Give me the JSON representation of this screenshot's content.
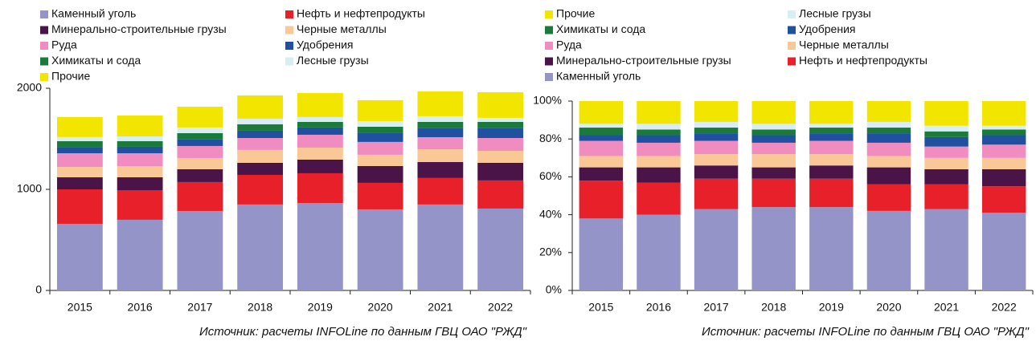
{
  "chart_data": [
    {
      "type": "stacked_bar",
      "categories": [
        "2015",
        "2016",
        "2017",
        "2018",
        "2019",
        "2020",
        "2021",
        "2022"
      ],
      "series": [
        {
          "name": "Каменный уголь",
          "color": "#9494c8",
          "values": [
            659,
            699,
            786,
            850,
            865,
            802,
            850,
            810
          ]
        },
        {
          "name": "Нефть и нефтепродукты",
          "color": "#e8202a",
          "values": [
            341,
            293,
            286,
            293,
            294,
            262,
            262,
            278
          ]
        },
        {
          "name": "Минерально-строительные грузы",
          "color": "#4a1448",
          "values": [
            119,
            127,
            127,
            119,
            135,
            167,
            158,
            174
          ]
        },
        {
          "name": "Черные металлы",
          "color": "#f9c896",
          "values": [
            103,
            111,
            111,
            128,
            119,
            111,
            127,
            119
          ]
        },
        {
          "name": "Руда",
          "color": "#f08cc0",
          "values": [
            135,
            127,
            119,
            118,
            127,
            127,
            119,
            127
          ]
        },
        {
          "name": "Удобрения",
          "color": "#2050a0",
          "values": [
            56,
            64,
            64,
            72,
            72,
            87,
            88,
            96
          ]
        },
        {
          "name": "Химикаты и сода",
          "color": "#1a7a3a",
          "values": [
            64,
            56,
            63,
            64,
            55,
            64,
            63,
            63
          ]
        },
        {
          "name": "Лесные грузы",
          "color": "#d8eef4",
          "values": [
            40,
            47,
            56,
            55,
            48,
            55,
            56,
            40
          ]
        },
        {
          "name": "Прочие",
          "color": "#f2e600",
          "values": [
            199,
            207,
            206,
            230,
            238,
            207,
            246,
            254
          ]
        }
      ],
      "ylim": [
        0,
        2000
      ],
      "yticks": [
        0,
        1000,
        2000
      ],
      "legend_reversed": false,
      "source": "Источник: расчеты INFOLine по данным ГВЦ ОАО \"РЖД\""
    },
    {
      "type": "stacked_bar",
      "categories": [
        "2015",
        "2016",
        "2017",
        "2018",
        "2019",
        "2020",
        "2021",
        "2022"
      ],
      "series": [
        {
          "name": "Каменный уголь",
          "color": "#9494c8",
          "values": [
            38,
            40,
            43,
            44,
            44,
            42,
            43,
            41
          ]
        },
        {
          "name": "Нефть и нефтепродукты",
          "color": "#e8202a",
          "values": [
            20,
            17,
            16,
            15,
            15,
            14,
            13,
            14
          ]
        },
        {
          "name": "Минерально-строительные грузы",
          "color": "#4a1448",
          "values": [
            7,
            8,
            7,
            6,
            7,
            9,
            8,
            9
          ]
        },
        {
          "name": "Черные металлы",
          "color": "#f9c896",
          "values": [
            6,
            6,
            6,
            7,
            6,
            6,
            6,
            6
          ]
        },
        {
          "name": "Руда",
          "color": "#f08cc0",
          "values": [
            8,
            7,
            7,
            6,
            7,
            7,
            6,
            7
          ]
        },
        {
          "name": "Удобрения",
          "color": "#2050a0",
          "values": [
            3,
            4,
            4,
            4,
            4,
            5,
            5,
            5
          ]
        },
        {
          "name": "Химикаты и сода",
          "color": "#1a7a3a",
          "values": [
            4,
            3,
            3,
            3,
            3,
            3,
            3,
            3
          ]
        },
        {
          "name": "Лесные грузы",
          "color": "#d8eef4",
          "values": [
            2,
            3,
            3,
            3,
            2,
            3,
            3,
            2
          ]
        },
        {
          "name": "Прочие",
          "color": "#f2e600",
          "values": [
            12,
            12,
            11,
            12,
            12,
            11,
            13,
            13
          ]
        }
      ],
      "ylim": [
        0,
        100
      ],
      "yticks": [
        {
          "value": 0,
          "label": "0%"
        },
        {
          "value": 20,
          "label": "20%"
        },
        {
          "value": 40,
          "label": "40%"
        },
        {
          "value": 60,
          "label": "60%"
        },
        {
          "value": 80,
          "label": "80%"
        },
        {
          "value": 100,
          "label": "100%"
        }
      ],
      "legend_reversed": true,
      "source": "Источник: расчеты INFOLine по данным ГВЦ ОАО \"РЖД\""
    }
  ]
}
